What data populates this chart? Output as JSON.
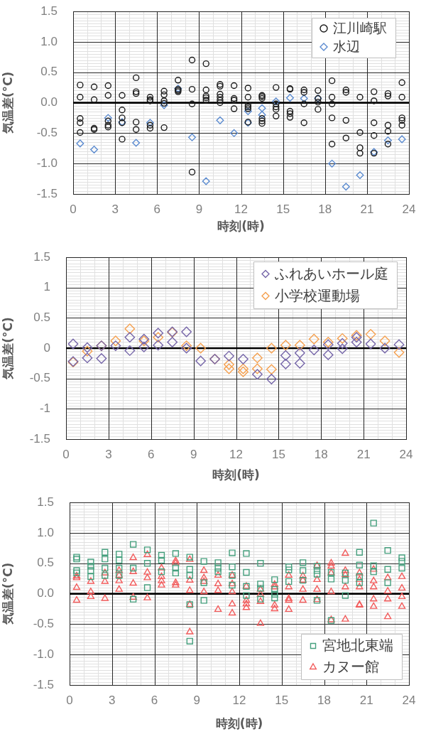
{
  "chart_data": [
    {
      "type": "scatter",
      "xlabel": "時刻(時)",
      "ylabel": "気温差(°C)",
      "xlim": [
        0,
        24
      ],
      "ylim": [
        -1.5,
        1.5
      ],
      "grid": true,
      "legend": "top right",
      "xticks": [
        0,
        {
          "value": 1,
          "label": null
        },
        {
          "value": 2,
          "label": null
        },
        3,
        {
          "value": 4,
          "label": null
        },
        {
          "value": 5,
          "label": null
        },
        6,
        {
          "value": 7,
          "label": null
        },
        {
          "value": 8,
          "label": null
        },
        9,
        {
          "value": 10,
          "label": null
        },
        {
          "value": 11,
          "label": null
        },
        12,
        {
          "value": 13,
          "label": null
        },
        {
          "value": 14,
          "label": null
        },
        15,
        {
          "value": 16,
          "label": null
        },
        {
          "value": 17,
          "label": null
        },
        18,
        {
          "value": 19,
          "label": null
        },
        {
          "value": 20,
          "label": null
        },
        21,
        {
          "value": 22,
          "label": null
        },
        {
          "value": 23,
          "label": null
        },
        24
      ],
      "yticks": [
        -1.5,
        {
          "value": -1.45,
          "label": null
        },
        {
          "value": -1.4,
          "label": null
        },
        {
          "value": -1.35,
          "label": null
        },
        {
          "value": -1.3,
          "label": null
        },
        {
          "value": -1.25,
          "label": null
        },
        {
          "value": -1.2,
          "label": null
        },
        {
          "value": -1.15,
          "label": null
        },
        {
          "value": -1.1,
          "label": null
        },
        {
          "value": -1.05,
          "label": null
        },
        {
          "value": -1,
          "label": "-1.0"
        },
        {
          "value": -0.95,
          "label": null
        },
        {
          "value": -0.9,
          "label": null
        },
        {
          "value": -0.85,
          "label": null
        },
        {
          "value": -0.8,
          "label": null
        },
        {
          "value": -0.75,
          "label": null
        },
        {
          "value": -0.7,
          "label": null
        },
        {
          "value": -0.65,
          "label": null
        },
        {
          "value": -0.6,
          "label": null
        },
        {
          "value": -0.55,
          "label": null
        },
        -0.5,
        {
          "value": -0.45,
          "label": null
        },
        {
          "value": -0.4,
          "label": null
        },
        {
          "value": -0.35,
          "label": null
        },
        {
          "value": -0.3,
          "label": null
        },
        {
          "value": -0.25,
          "label": null
        },
        {
          "value": -0.2,
          "label": null
        },
        {
          "value": -0.15,
          "label": null
        },
        {
          "value": -0.1,
          "label": null
        },
        {
          "value": -0.05,
          "label": null
        },
        {
          "value": 0,
          "label": "0.0"
        },
        {
          "value": 0.05,
          "label": null
        },
        {
          "value": 0.1,
          "label": null
        },
        {
          "value": 0.15,
          "label": null
        },
        {
          "value": 0.2,
          "label": null
        },
        {
          "value": 0.25,
          "label": null
        },
        {
          "value": 0.3,
          "label": null
        },
        {
          "value": 0.35,
          "label": null
        },
        {
          "value": 0.4,
          "label": null
        },
        {
          "value": 0.45,
          "label": null
        },
        0.5,
        {
          "value": 0.55,
          "label": null
        },
        {
          "value": 0.6,
          "label": null
        },
        {
          "value": 0.65,
          "label": null
        },
        {
          "value": 0.7,
          "label": null
        },
        {
          "value": 0.75,
          "label": null
        },
        {
          "value": 0.8,
          "label": null
        },
        {
          "value": 0.85,
          "label": null
        },
        {
          "value": 0.9,
          "label": null
        },
        {
          "value": 0.95,
          "label": null
        },
        {
          "value": 1,
          "label": "1.0"
        },
        {
          "value": 1.05,
          "label": null
        },
        {
          "value": 1.1,
          "label": null
        },
        {
          "value": 1.15,
          "label": null
        },
        {
          "value": 1.2,
          "label": null
        },
        {
          "value": 1.25,
          "label": null
        },
        {
          "value": 1.3,
          "label": null
        },
        {
          "value": 1.35,
          "label": null
        },
        {
          "value": 1.4,
          "label": null
        },
        {
          "value": 1.45,
          "label": null
        },
        1.5
      ],
      "ref_lines": [
        {
          "axis": "y",
          "value": 0,
          "color": "#000000"
        }
      ],
      "series": [
        {
          "name": "江川崎駅",
          "color": "#1a1a1a",
          "marker": "circle",
          "x": [
            0.5,
            0.5,
            0.5,
            0.5,
            0.5,
            1.5,
            1.5,
            1.5,
            1.5,
            2.5,
            2.5,
            2.5,
            2.5,
            2.5,
            3.5,
            3.5,
            3.5,
            3.5,
            3.5,
            4.5,
            4.5,
            4.5,
            4.5,
            4.5,
            5.5,
            5.5,
            5.5,
            5.5,
            5.5,
            6.5,
            6.5,
            6.5,
            6.5,
            6.5,
            7.5,
            7.5,
            7.5,
            7.5,
            8.5,
            8.5,
            8.5,
            8.5,
            9.5,
            9.5,
            9.5,
            9.5,
            9.5,
            10.5,
            10.5,
            10.5,
            10.5,
            10.5,
            10.5,
            11.5,
            11.5,
            11.5,
            11.5,
            12.5,
            12.5,
            12.5,
            12.5,
            12.5,
            12.5,
            13.5,
            13.5,
            13.5,
            13.5,
            13.5,
            13.5,
            14.5,
            14.5,
            14.5,
            14.5,
            14.5,
            15.5,
            15.5,
            15.5,
            15.5,
            15.5,
            16.5,
            16.5,
            16.5,
            16.5,
            17.5,
            17.5,
            17.5,
            17.5,
            18.5,
            18.5,
            18.5,
            18.5,
            18.5,
            19.5,
            19.5,
            19.5,
            19.5,
            20.5,
            20.5,
            20.5,
            20.5,
            21.5,
            21.5,
            21.5,
            21.5,
            21.5,
            22.5,
            22.5,
            22.5,
            22.5,
            22.5,
            23.5,
            23.5,
            23.5,
            23.5,
            23.5
          ],
          "values": [
            0.29,
            0.09,
            -0.26,
            -0.33,
            -0.49,
            0.26,
            0.05,
            -0.42,
            -0.44,
            0.28,
            0.12,
            -0.3,
            -0.37,
            -0.4,
            0.12,
            -0.12,
            -0.25,
            -0.33,
            -0.6,
            0.41,
            0.18,
            0.15,
            -0.32,
            -0.44,
            0.09,
            0.05,
            0.03,
            -0.37,
            -0.42,
            0.19,
            0.13,
            0.03,
            -0.01,
            -0.41,
            0.37,
            0.22,
            0.2,
            0.18,
            0.7,
            0.22,
            -0.02,
            -1.14,
            0.64,
            0.21,
            0.11,
            0.08,
            0.04,
            0.3,
            0.27,
            0.14,
            0.09,
            0.04,
            0,
            0.28,
            0.07,
            0.04,
            -0.1,
            0.24,
            0.09,
            -0.04,
            -0.07,
            -0.1,
            -0.32,
            0.12,
            0.1,
            0.07,
            -0.26,
            -0.3,
            -0.34,
            0.25,
            -0.02,
            -0.07,
            -0.11,
            -0.22,
            0.23,
            0.22,
            -0.14,
            -0.18,
            -0.24,
            0.21,
            0.17,
            -0.02,
            -0.33,
            0.2,
            0.07,
            0.01,
            -0.11,
            0.36,
            0.09,
            -0.02,
            -0.25,
            -0.68,
            0.21,
            0.17,
            -0.29,
            -0.58,
            0.09,
            -0.49,
            -0.74,
            -0.83,
            0.18,
            0.03,
            -0.33,
            -0.54,
            -0.83,
            0.15,
            0.11,
            -0.37,
            -0.47,
            -0.68,
            0.33,
            0.09,
            -0.25,
            -0.29,
            -0.37
          ]
        },
        {
          "name": "水辺",
          "color": "#5b8bd0",
          "marker": "diamond",
          "x": [
            0.5,
            1.5,
            2.5,
            3.5,
            4.5,
            5.5,
            6.5,
            7.5,
            8.5,
            9.5,
            10.5,
            11.5,
            12.5,
            12.5,
            13.5,
            13.5,
            14.5,
            15.5,
            16.5,
            17.5,
            18.5,
            19.5,
            20.5,
            21.5,
            22.5,
            23.5
          ],
          "values": [
            -0.67,
            -0.77,
            -0.25,
            -0.32,
            -0.66,
            -0.33,
            -0.04,
            0.23,
            -0.57,
            -1.29,
            -0.29,
            -0.5,
            -0.14,
            -0.33,
            -0.09,
            -0.2,
            0.02,
            0.08,
            0.07,
            0.07,
            -1,
            -1.38,
            -1.19,
            -0.81,
            -0.62,
            -0.6
          ]
        }
      ]
    },
    {
      "type": "scatter",
      "xlabel": "時刻(時)",
      "ylabel": "気温差(°C)",
      "xlim": [
        0,
        24
      ],
      "ylim": [
        -1.5,
        1.5
      ],
      "grid": true,
      "legend": "top right",
      "xticks": [
        0,
        {
          "value": 1,
          "label": null
        },
        {
          "value": 2,
          "label": null
        },
        3,
        {
          "value": 4,
          "label": null
        },
        {
          "value": 5,
          "label": null
        },
        6,
        {
          "value": 7,
          "label": null
        },
        {
          "value": 8,
          "label": null
        },
        9,
        {
          "value": 10,
          "label": null
        },
        {
          "value": 11,
          "label": null
        },
        12,
        {
          "value": 13,
          "label": null
        },
        {
          "value": 14,
          "label": null
        },
        15,
        {
          "value": 16,
          "label": null
        },
        {
          "value": 17,
          "label": null
        },
        18,
        {
          "value": 19,
          "label": null
        },
        {
          "value": 20,
          "label": null
        },
        21,
        {
          "value": 22,
          "label": null
        },
        {
          "value": 23,
          "label": null
        },
        24
      ],
      "yticks": [
        -1.5,
        {
          "value": -1.45,
          "label": null
        },
        {
          "value": -1.4,
          "label": null
        },
        {
          "value": -1.35,
          "label": null
        },
        {
          "value": -1.3,
          "label": null
        },
        {
          "value": -1.25,
          "label": null
        },
        {
          "value": -1.2,
          "label": null
        },
        {
          "value": -1.15,
          "label": null
        },
        {
          "value": -1.1,
          "label": null
        },
        {
          "value": -1.05,
          "label": null
        },
        -1,
        {
          "value": -0.95,
          "label": null
        },
        {
          "value": -0.9,
          "label": null
        },
        {
          "value": -0.85,
          "label": null
        },
        {
          "value": -0.8,
          "label": null
        },
        {
          "value": -0.75,
          "label": null
        },
        {
          "value": -0.7,
          "label": null
        },
        {
          "value": -0.65,
          "label": null
        },
        {
          "value": -0.6,
          "label": null
        },
        {
          "value": -0.55,
          "label": null
        },
        -0.5,
        {
          "value": -0.45,
          "label": null
        },
        {
          "value": -0.4,
          "label": null
        },
        {
          "value": -0.35,
          "label": null
        },
        {
          "value": -0.3,
          "label": null
        },
        {
          "value": -0.25,
          "label": null
        },
        {
          "value": -0.2,
          "label": null
        },
        {
          "value": -0.15,
          "label": null
        },
        {
          "value": -0.1,
          "label": null
        },
        {
          "value": -0.05,
          "label": null
        },
        0,
        {
          "value": 0.05,
          "label": null
        },
        {
          "value": 0.1,
          "label": null
        },
        {
          "value": 0.15,
          "label": null
        },
        {
          "value": 0.2,
          "label": null
        },
        {
          "value": 0.25,
          "label": null
        },
        {
          "value": 0.3,
          "label": null
        },
        {
          "value": 0.35,
          "label": null
        },
        {
          "value": 0.4,
          "label": null
        },
        {
          "value": 0.45,
          "label": null
        },
        0.5,
        {
          "value": 0.55,
          "label": null
        },
        {
          "value": 0.6,
          "label": null
        },
        {
          "value": 0.65,
          "label": null
        },
        {
          "value": 0.7,
          "label": null
        },
        {
          "value": 0.75,
          "label": null
        },
        {
          "value": 0.8,
          "label": null
        },
        {
          "value": 0.85,
          "label": null
        },
        {
          "value": 0.9,
          "label": null
        },
        {
          "value": 0.95,
          "label": null
        },
        1,
        {
          "value": 1.05,
          "label": null
        },
        {
          "value": 1.1,
          "label": null
        },
        {
          "value": 1.15,
          "label": null
        },
        {
          "value": 1.2,
          "label": null
        },
        {
          "value": 1.25,
          "label": null
        },
        {
          "value": 1.3,
          "label": null
        },
        {
          "value": 1.35,
          "label": null
        },
        {
          "value": 1.4,
          "label": null
        },
        {
          "value": 1.45,
          "label": null
        },
        1.5
      ],
      "ref_lines": [
        {
          "axis": "y",
          "value": 0,
          "color": "#000000"
        }
      ],
      "series": [
        {
          "name": "ふれあいホール庭",
          "color": "#7565a8",
          "marker": "diamond",
          "x": [
            0.5,
            0.5,
            1.5,
            1.5,
            2.5,
            2.5,
            3.5,
            4.5,
            4.5,
            5.5,
            5.5,
            6.5,
            6.5,
            7.5,
            7.5,
            8.5,
            8.5,
            9.5,
            10.5,
            11.5,
            12.5,
            13.5,
            14.5,
            15.5,
            15.5,
            16.5,
            16.5,
            17.5,
            18.5,
            18.5,
            19.5,
            19.5,
            20.5,
            20.5,
            21.5,
            22.5,
            23.5
          ],
          "values": [
            0.07,
            -0.22,
            0.01,
            -0.16,
            0.04,
            -0.17,
            0.04,
            0.18,
            -0.04,
            0.15,
            0.02,
            0.25,
            0.05,
            0.27,
            0.1,
            0.27,
            0,
            -0.21,
            -0.18,
            -0.13,
            -0.18,
            -0.43,
            -0.51,
            -0.12,
            -0.26,
            -0.08,
            -0.25,
            -0.03,
            0.06,
            -0.11,
            0.08,
            -0.01,
            0.18,
            0.1,
            0.07,
            0,
            0.06
          ]
        },
        {
          "name": "小学校運動場",
          "color": "#f5a04f",
          "marker": "diamond",
          "x": [
            0.5,
            1.5,
            2.5,
            3.5,
            4.5,
            5.5,
            6.5,
            7.5,
            8.5,
            9.5,
            10.5,
            11.5,
            11.5,
            12.5,
            12.5,
            13.5,
            13.5,
            14.5,
            14.5,
            15.5,
            16.5,
            17.5,
            18.5,
            19.5,
            20.5,
            21.5,
            22.5,
            23.5
          ],
          "values": [
            -0.23,
            -0.05,
            0.04,
            0.12,
            0.32,
            0.12,
            0.18,
            0.26,
            0.04,
            0,
            -0.18,
            -0.27,
            -0.34,
            -0.34,
            -0.39,
            -0.16,
            -0.34,
            0,
            -0.35,
            0.05,
            0.05,
            0.15,
            0.1,
            0.16,
            0.21,
            0.23,
            0.12,
            -0.07
          ]
        }
      ]
    },
    {
      "type": "scatter",
      "xlabel": "時刻(時)",
      "ylabel": "気温差(°C)",
      "xlim": [
        0,
        24
      ],
      "ylim": [
        -1.5,
        1.5
      ],
      "grid": true,
      "legend": "bottom right",
      "xticks": [
        0,
        {
          "value": 1,
          "label": null
        },
        {
          "value": 2,
          "label": null
        },
        3,
        {
          "value": 4,
          "label": null
        },
        {
          "value": 5,
          "label": null
        },
        6,
        {
          "value": 7,
          "label": null
        },
        {
          "value": 8,
          "label": null
        },
        9,
        {
          "value": 10,
          "label": null
        },
        {
          "value": 11,
          "label": null
        },
        12,
        {
          "value": 13,
          "label": null
        },
        {
          "value": 14,
          "label": null
        },
        15,
        {
          "value": 16,
          "label": null
        },
        {
          "value": 17,
          "label": null
        },
        18,
        {
          "value": 19,
          "label": null
        },
        {
          "value": 20,
          "label": null
        },
        21,
        {
          "value": 22,
          "label": null
        },
        {
          "value": 23,
          "label": null
        },
        24
      ],
      "yticks": [
        -1.5,
        {
          "value": -1.45,
          "label": null
        },
        {
          "value": -1.4,
          "label": null
        },
        {
          "value": -1.35,
          "label": null
        },
        {
          "value": -1.3,
          "label": null
        },
        {
          "value": -1.25,
          "label": null
        },
        {
          "value": -1.2,
          "label": null
        },
        {
          "value": -1.15,
          "label": null
        },
        {
          "value": -1.1,
          "label": null
        },
        {
          "value": -1.05,
          "label": null
        },
        {
          "value": -1,
          "label": "-1.0"
        },
        {
          "value": -0.95,
          "label": null
        },
        {
          "value": -0.9,
          "label": null
        },
        {
          "value": -0.85,
          "label": null
        },
        {
          "value": -0.8,
          "label": null
        },
        {
          "value": -0.75,
          "label": null
        },
        {
          "value": -0.7,
          "label": null
        },
        {
          "value": -0.65,
          "label": null
        },
        {
          "value": -0.6,
          "label": null
        },
        {
          "value": -0.55,
          "label": null
        },
        -0.5,
        {
          "value": -0.45,
          "label": null
        },
        {
          "value": -0.4,
          "label": null
        },
        {
          "value": -0.35,
          "label": null
        },
        {
          "value": -0.3,
          "label": null
        },
        {
          "value": -0.25,
          "label": null
        },
        {
          "value": -0.2,
          "label": null
        },
        {
          "value": -0.15,
          "label": null
        },
        {
          "value": -0.1,
          "label": null
        },
        {
          "value": -0.05,
          "label": null
        },
        {
          "value": 0,
          "label": "0.0"
        },
        {
          "value": 0.05,
          "label": null
        },
        {
          "value": 0.1,
          "label": null
        },
        {
          "value": 0.15,
          "label": null
        },
        {
          "value": 0.2,
          "label": null
        },
        {
          "value": 0.25,
          "label": null
        },
        {
          "value": 0.3,
          "label": null
        },
        {
          "value": 0.35,
          "label": null
        },
        {
          "value": 0.4,
          "label": null
        },
        {
          "value": 0.45,
          "label": null
        },
        0.5,
        {
          "value": 0.55,
          "label": null
        },
        {
          "value": 0.6,
          "label": null
        },
        {
          "value": 0.65,
          "label": null
        },
        {
          "value": 0.7,
          "label": null
        },
        {
          "value": 0.75,
          "label": null
        },
        {
          "value": 0.8,
          "label": null
        },
        {
          "value": 0.85,
          "label": null
        },
        {
          "value": 0.9,
          "label": null
        },
        {
          "value": 0.95,
          "label": null
        },
        {
          "value": 1,
          "label": "1.0"
        },
        {
          "value": 1.05,
          "label": null
        },
        {
          "value": 1.1,
          "label": null
        },
        {
          "value": 1.15,
          "label": null
        },
        {
          "value": 1.2,
          "label": null
        },
        {
          "value": 1.25,
          "label": null
        },
        {
          "value": 1.3,
          "label": null
        },
        {
          "value": 1.35,
          "label": null
        },
        {
          "value": 1.4,
          "label": null
        },
        {
          "value": 1.45,
          "label": null
        },
        1.5
      ],
      "ref_lines": [
        {
          "axis": "y",
          "value": 0,
          "color": "#000000"
        }
      ],
      "series": [
        {
          "name": "宮地北東端",
          "color": "#46a07e",
          "marker": "square",
          "x": [
            0.5,
            0.5,
            0.5,
            0.5,
            1.5,
            1.5,
            1.5,
            1.5,
            2.5,
            2.5,
            2.5,
            2.5,
            3.5,
            3.5,
            3.5,
            3.5,
            4.5,
            4.5,
            4.5,
            5.5,
            5.5,
            5.5,
            6.5,
            6.5,
            6.5,
            7.5,
            7.5,
            7.5,
            8.5,
            8.5,
            8.5,
            8.5,
            8.5,
            9.5,
            9.5,
            9.5,
            10.5,
            10.5,
            10.5,
            11.5,
            11.5,
            11.5,
            11.5,
            12.5,
            12.5,
            12.5,
            12.5,
            13.5,
            13.5,
            13.5,
            13.5,
            14.5,
            14.5,
            14.5,
            14.5,
            15.5,
            15.5,
            15.5,
            16.5,
            16.5,
            16.5,
            17.5,
            17.5,
            17.5,
            17.5,
            18.5,
            18.5,
            18.5,
            19.5,
            19.5,
            19.5,
            20.5,
            20.5,
            20.5,
            20.5,
            21.5,
            21.5,
            21.5,
            22.5,
            22.5,
            22.5,
            23.5,
            23.5,
            23.5
          ],
          "values": [
            0.6,
            0.57,
            0.38,
            0.34,
            0.52,
            0.45,
            0.38,
            0.28,
            0.68,
            0.57,
            0.42,
            0.3,
            0.65,
            0.55,
            0.42,
            0.3,
            0.81,
            0.42,
            -0.09,
            0.72,
            0.5,
            0.1,
            0.63,
            0.55,
            0.36,
            0.66,
            0.42,
            0.34,
            0.6,
            0.4,
            0.3,
            -0.18,
            -0.78,
            0.53,
            0.18,
            -0.11,
            0.51,
            0.42,
            0.36,
            0.67,
            0.44,
            0.3,
            0.14,
            0.66,
            0.35,
            0.12,
            -0.03,
            0.5,
            0.16,
            0.09,
            -0.09,
            0.23,
            0.07,
            -0.01,
            -0.07,
            0.44,
            0.39,
            0.2,
            0.51,
            0.38,
            0.22,
            0.45,
            0.38,
            0.32,
            -0.11,
            0.35,
            0.24,
            -0.44,
            0.34,
            0.22,
            -0.03,
            0.68,
            0.47,
            0.28,
            0.18,
            1.16,
            0.46,
            0.36,
            0.71,
            0.4,
            0.18,
            0.59,
            0.53,
            0.42
          ]
        },
        {
          "name": "カヌー館",
          "color": "#f25c5c",
          "marker": "triangle",
          "x": [
            0.5,
            0.5,
            0.5,
            0.5,
            1.5,
            1.5,
            1.5,
            2.5,
            2.5,
            2.5,
            3.5,
            3.5,
            3.5,
            3.5,
            4.5,
            4.5,
            4.5,
            4.5,
            5.5,
            5.5,
            5.5,
            5.5,
            6.5,
            6.5,
            6.5,
            6.5,
            7.5,
            7.5,
            7.5,
            7.5,
            8.5,
            8.5,
            8.5,
            8.5,
            8.5,
            9.5,
            9.5,
            9.5,
            9.5,
            10.5,
            10.5,
            10.5,
            10.5,
            11.5,
            11.5,
            11.5,
            11.5,
            11.5,
            12.5,
            12.5,
            12.5,
            12.5,
            13.5,
            13.5,
            13.5,
            13.5,
            14.5,
            14.5,
            14.5,
            14.5,
            15.5,
            15.5,
            15.5,
            15.5,
            15.5,
            16.5,
            16.5,
            16.5,
            16.5,
            17.5,
            17.5,
            17.5,
            17.5,
            18.5,
            18.5,
            18.5,
            18.5,
            18.5,
            19.5,
            19.5,
            19.5,
            19.5,
            19.5,
            20.5,
            20.5,
            20.5,
            20.5,
            20.5,
            21.5,
            21.5,
            21.5,
            21.5,
            21.5,
            22.5,
            22.5,
            22.5,
            22.5,
            23.5,
            23.5,
            23.5,
            23.5
          ],
          "values": [
            0.29,
            0.26,
            0.1,
            -0.11,
            0.2,
            0.03,
            -0.05,
            0.34,
            0.2,
            -0.08,
            0.38,
            0.3,
            0.21,
            0.07,
            0.59,
            0.36,
            0.17,
            -0.06,
            0.64,
            0.35,
            0.26,
            -0.07,
            0.42,
            0.28,
            0.21,
            0.14,
            0.54,
            0.5,
            0.18,
            0.14,
            0.56,
            0.22,
            0.05,
            -0.18,
            -0.63,
            0.38,
            0.26,
            0.2,
            0.03,
            0.3,
            0.16,
            0.05,
            -0.26,
            0.3,
            0.16,
            0.03,
            -0.17,
            -0.32,
            0.12,
            -0.11,
            -0.17,
            -0.23,
            0.07,
            -0.01,
            -0.13,
            -0.49,
            0.15,
            0.11,
            -0.19,
            -0.25,
            0.3,
            0.11,
            -0.08,
            -0.11,
            -0.26,
            0.29,
            0.22,
            0.07,
            -0.11,
            0.46,
            0.23,
            0.07,
            -0.1,
            0.5,
            0.45,
            0.34,
            0.03,
            -0.43,
            0.66,
            0.38,
            0.31,
            0.11,
            -0.42,
            0.34,
            0.23,
            0.11,
            -0.18,
            -0.19,
            0.4,
            0.21,
            0.11,
            -0.09,
            -0.21,
            0.26,
            0.04,
            -0.09,
            -0.38,
            0.28,
            0.09,
            -0.05,
            -0.21
          ]
        }
      ]
    }
  ]
}
